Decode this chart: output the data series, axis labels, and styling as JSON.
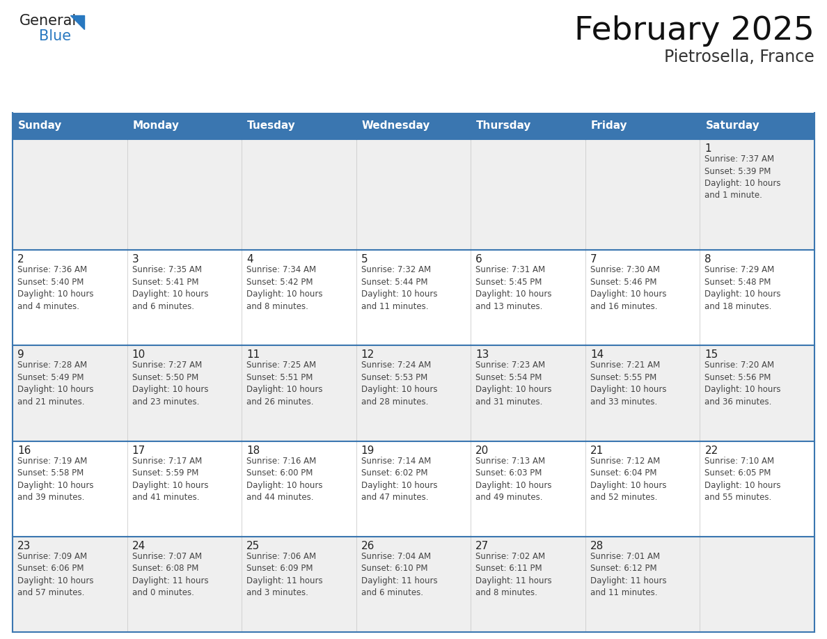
{
  "title": "February 2025",
  "subtitle": "Pietrosella, France",
  "days_of_week": [
    "Sunday",
    "Monday",
    "Tuesday",
    "Wednesday",
    "Thursday",
    "Friday",
    "Saturday"
  ],
  "header_bg": "#3a76b0",
  "header_text": "#ffffff",
  "row_bg_odd": "#efefef",
  "row_bg_even": "#ffffff",
  "border_color": "#3a76b0",
  "day_number_color": "#222222",
  "info_text_color": "#444444",
  "title_color": "#111111",
  "subtitle_color": "#333333",
  "logo_general_color": "#222222",
  "logo_blue_color": "#2878c0",
  "weeks": [
    {
      "days": [
        {
          "date": null,
          "info": null
        },
        {
          "date": null,
          "info": null
        },
        {
          "date": null,
          "info": null
        },
        {
          "date": null,
          "info": null
        },
        {
          "date": null,
          "info": null
        },
        {
          "date": null,
          "info": null
        },
        {
          "date": "1",
          "info": "Sunrise: 7:37 AM\nSunset: 5:39 PM\nDaylight: 10 hours\nand 1 minute."
        }
      ]
    },
    {
      "days": [
        {
          "date": "2",
          "info": "Sunrise: 7:36 AM\nSunset: 5:40 PM\nDaylight: 10 hours\nand 4 minutes."
        },
        {
          "date": "3",
          "info": "Sunrise: 7:35 AM\nSunset: 5:41 PM\nDaylight: 10 hours\nand 6 minutes."
        },
        {
          "date": "4",
          "info": "Sunrise: 7:34 AM\nSunset: 5:42 PM\nDaylight: 10 hours\nand 8 minutes."
        },
        {
          "date": "5",
          "info": "Sunrise: 7:32 AM\nSunset: 5:44 PM\nDaylight: 10 hours\nand 11 minutes."
        },
        {
          "date": "6",
          "info": "Sunrise: 7:31 AM\nSunset: 5:45 PM\nDaylight: 10 hours\nand 13 minutes."
        },
        {
          "date": "7",
          "info": "Sunrise: 7:30 AM\nSunset: 5:46 PM\nDaylight: 10 hours\nand 16 minutes."
        },
        {
          "date": "8",
          "info": "Sunrise: 7:29 AM\nSunset: 5:48 PM\nDaylight: 10 hours\nand 18 minutes."
        }
      ]
    },
    {
      "days": [
        {
          "date": "9",
          "info": "Sunrise: 7:28 AM\nSunset: 5:49 PM\nDaylight: 10 hours\nand 21 minutes."
        },
        {
          "date": "10",
          "info": "Sunrise: 7:27 AM\nSunset: 5:50 PM\nDaylight: 10 hours\nand 23 minutes."
        },
        {
          "date": "11",
          "info": "Sunrise: 7:25 AM\nSunset: 5:51 PM\nDaylight: 10 hours\nand 26 minutes."
        },
        {
          "date": "12",
          "info": "Sunrise: 7:24 AM\nSunset: 5:53 PM\nDaylight: 10 hours\nand 28 minutes."
        },
        {
          "date": "13",
          "info": "Sunrise: 7:23 AM\nSunset: 5:54 PM\nDaylight: 10 hours\nand 31 minutes."
        },
        {
          "date": "14",
          "info": "Sunrise: 7:21 AM\nSunset: 5:55 PM\nDaylight: 10 hours\nand 33 minutes."
        },
        {
          "date": "15",
          "info": "Sunrise: 7:20 AM\nSunset: 5:56 PM\nDaylight: 10 hours\nand 36 minutes."
        }
      ]
    },
    {
      "days": [
        {
          "date": "16",
          "info": "Sunrise: 7:19 AM\nSunset: 5:58 PM\nDaylight: 10 hours\nand 39 minutes."
        },
        {
          "date": "17",
          "info": "Sunrise: 7:17 AM\nSunset: 5:59 PM\nDaylight: 10 hours\nand 41 minutes."
        },
        {
          "date": "18",
          "info": "Sunrise: 7:16 AM\nSunset: 6:00 PM\nDaylight: 10 hours\nand 44 minutes."
        },
        {
          "date": "19",
          "info": "Sunrise: 7:14 AM\nSunset: 6:02 PM\nDaylight: 10 hours\nand 47 minutes."
        },
        {
          "date": "20",
          "info": "Sunrise: 7:13 AM\nSunset: 6:03 PM\nDaylight: 10 hours\nand 49 minutes."
        },
        {
          "date": "21",
          "info": "Sunrise: 7:12 AM\nSunset: 6:04 PM\nDaylight: 10 hours\nand 52 minutes."
        },
        {
          "date": "22",
          "info": "Sunrise: 7:10 AM\nSunset: 6:05 PM\nDaylight: 10 hours\nand 55 minutes."
        }
      ]
    },
    {
      "days": [
        {
          "date": "23",
          "info": "Sunrise: 7:09 AM\nSunset: 6:06 PM\nDaylight: 10 hours\nand 57 minutes."
        },
        {
          "date": "24",
          "info": "Sunrise: 7:07 AM\nSunset: 6:08 PM\nDaylight: 11 hours\nand 0 minutes."
        },
        {
          "date": "25",
          "info": "Sunrise: 7:06 AM\nSunset: 6:09 PM\nDaylight: 11 hours\nand 3 minutes."
        },
        {
          "date": "26",
          "info": "Sunrise: 7:04 AM\nSunset: 6:10 PM\nDaylight: 11 hours\nand 6 minutes."
        },
        {
          "date": "27",
          "info": "Sunrise: 7:02 AM\nSunset: 6:11 PM\nDaylight: 11 hours\nand 8 minutes."
        },
        {
          "date": "28",
          "info": "Sunrise: 7:01 AM\nSunset: 6:12 PM\nDaylight: 11 hours\nand 11 minutes."
        },
        {
          "date": null,
          "info": null
        }
      ]
    }
  ]
}
